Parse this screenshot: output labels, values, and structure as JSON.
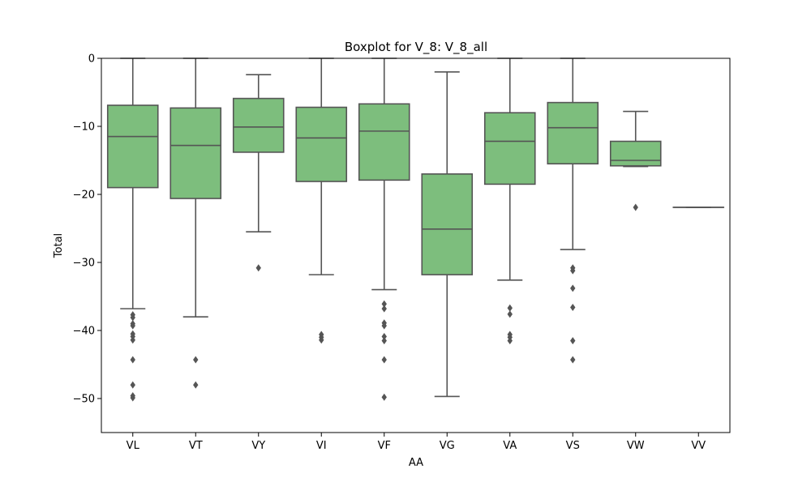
{
  "colors": {
    "box_fill": "#7dbe7d",
    "line": "#555555",
    "axis": "#000000",
    "background": "#ffffff"
  },
  "chart_data": {
    "type": "boxplot",
    "title": "Boxplot for V_8: V_8_all",
    "xlabel": "AA",
    "ylabel": "Total",
    "ylim": [
      -55,
      0
    ],
    "yticks": [
      0,
      -10,
      -20,
      -30,
      -40,
      -50
    ],
    "ytick_labels": [
      "0",
      "−10",
      "−20",
      "−30",
      "−40",
      "−50"
    ],
    "grid": false,
    "categories": [
      "VL",
      "VT",
      "VY",
      "VI",
      "VF",
      "VG",
      "VA",
      "VS",
      "VW",
      "VV"
    ],
    "boxes": [
      {
        "category": "VL",
        "whisker_low": -36.8,
        "q1": -19.0,
        "median": -11.5,
        "q3": -6.9,
        "whisker_high": 0.0,
        "outliers": [
          -37.7,
          -38.1,
          -39.0,
          -39.3,
          -40.5,
          -40.9,
          -41.4,
          -44.3,
          -48.0,
          -49.6,
          -49.9
        ]
      },
      {
        "category": "VT",
        "whisker_low": -38.0,
        "q1": -20.6,
        "median": -12.8,
        "q3": -7.3,
        "whisker_high": 0.0,
        "outliers": [
          -44.3,
          -48.0
        ]
      },
      {
        "category": "VY",
        "whisker_low": -25.5,
        "q1": -13.8,
        "median": -10.1,
        "q3": -5.9,
        "whisker_high": -2.4,
        "outliers": [
          -30.8
        ]
      },
      {
        "category": "VI",
        "whisker_low": -31.8,
        "q1": -18.1,
        "median": -11.7,
        "q3": -7.2,
        "whisker_high": 0.0,
        "outliers": [
          -40.6,
          -41.0,
          -41.4
        ]
      },
      {
        "category": "VF",
        "whisker_low": -34.0,
        "q1": -17.9,
        "median": -10.7,
        "q3": -6.7,
        "whisker_high": 0.0,
        "outliers": [
          -36.1,
          -36.8,
          -38.9,
          -39.3,
          -40.9,
          -41.5,
          -44.3,
          -49.8
        ]
      },
      {
        "category": "VG",
        "whisker_low": -49.7,
        "q1": -31.8,
        "median": -25.1,
        "q3": -17.0,
        "whisker_high": -2.0,
        "outliers": []
      },
      {
        "category": "VA",
        "whisker_low": -32.6,
        "q1": -18.5,
        "median": -12.2,
        "q3": -8.0,
        "whisker_high": 0.0,
        "outliers": [
          -36.7,
          -37.6,
          -40.6,
          -41.0,
          -41.5
        ]
      },
      {
        "category": "VS",
        "whisker_low": -28.1,
        "q1": -15.5,
        "median": -10.2,
        "q3": -6.5,
        "whisker_high": 0.0,
        "outliers": [
          -30.8,
          -31.2,
          -33.8,
          -36.6,
          -41.5,
          -44.3
        ]
      },
      {
        "category": "VW",
        "whisker_low": -15.9,
        "q1": -15.8,
        "median": -15.0,
        "q3": -12.2,
        "whisker_high": -7.8,
        "outliers": [
          -21.9
        ]
      },
      {
        "category": "VV",
        "whisker_low": -21.9,
        "q1": -21.9,
        "median": -21.9,
        "q3": -21.9,
        "whisker_high": -21.9,
        "outliers": []
      }
    ]
  }
}
